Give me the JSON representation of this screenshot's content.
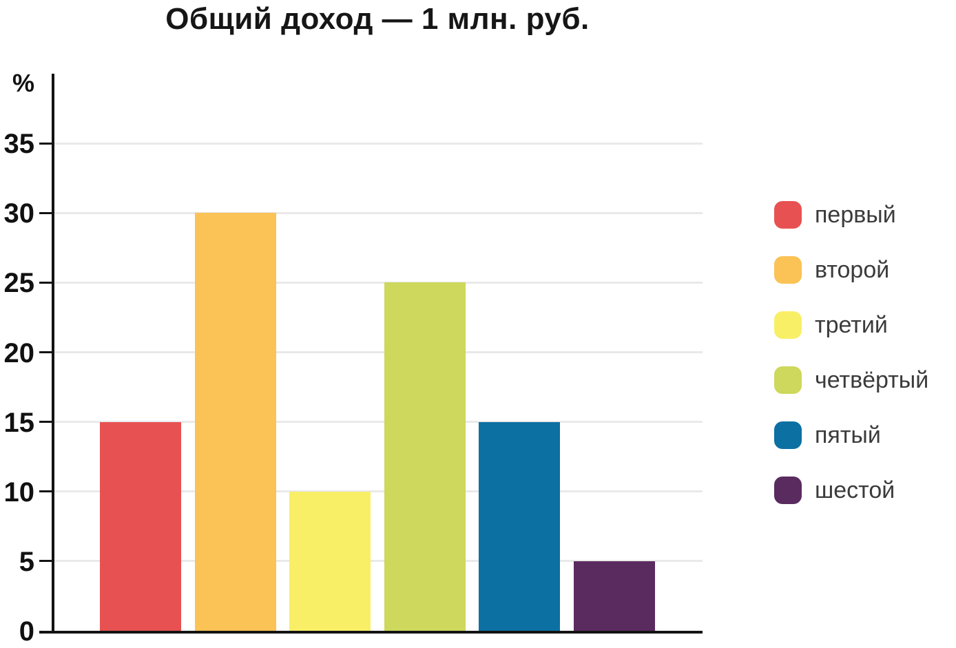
{
  "chart_data": {
    "type": "bar",
    "title": "Общий доход — 1 млн. руб.",
    "xlabel": "",
    "ylabel": "%",
    "ylim": [
      0,
      40
    ],
    "yticks": [
      0,
      5,
      10,
      15,
      20,
      25,
      30,
      35
    ],
    "grid": true,
    "legend_position": "right",
    "categories": [
      "первый",
      "второй",
      "третий",
      "четвёртый",
      "пятый",
      "шестой"
    ],
    "values": [
      15,
      30,
      10,
      25,
      15,
      5
    ],
    "colors": [
      "#E85151",
      "#FBC256",
      "#F9EF67",
      "#CDD85C",
      "#0C70A2",
      "#5A2B5F"
    ],
    "axis_color": "#131313",
    "grid_color": "#e9e9e9",
    "tick_text_color": "#111111",
    "title_color": "#161616",
    "legend_text_color": "#3b3b3b"
  }
}
